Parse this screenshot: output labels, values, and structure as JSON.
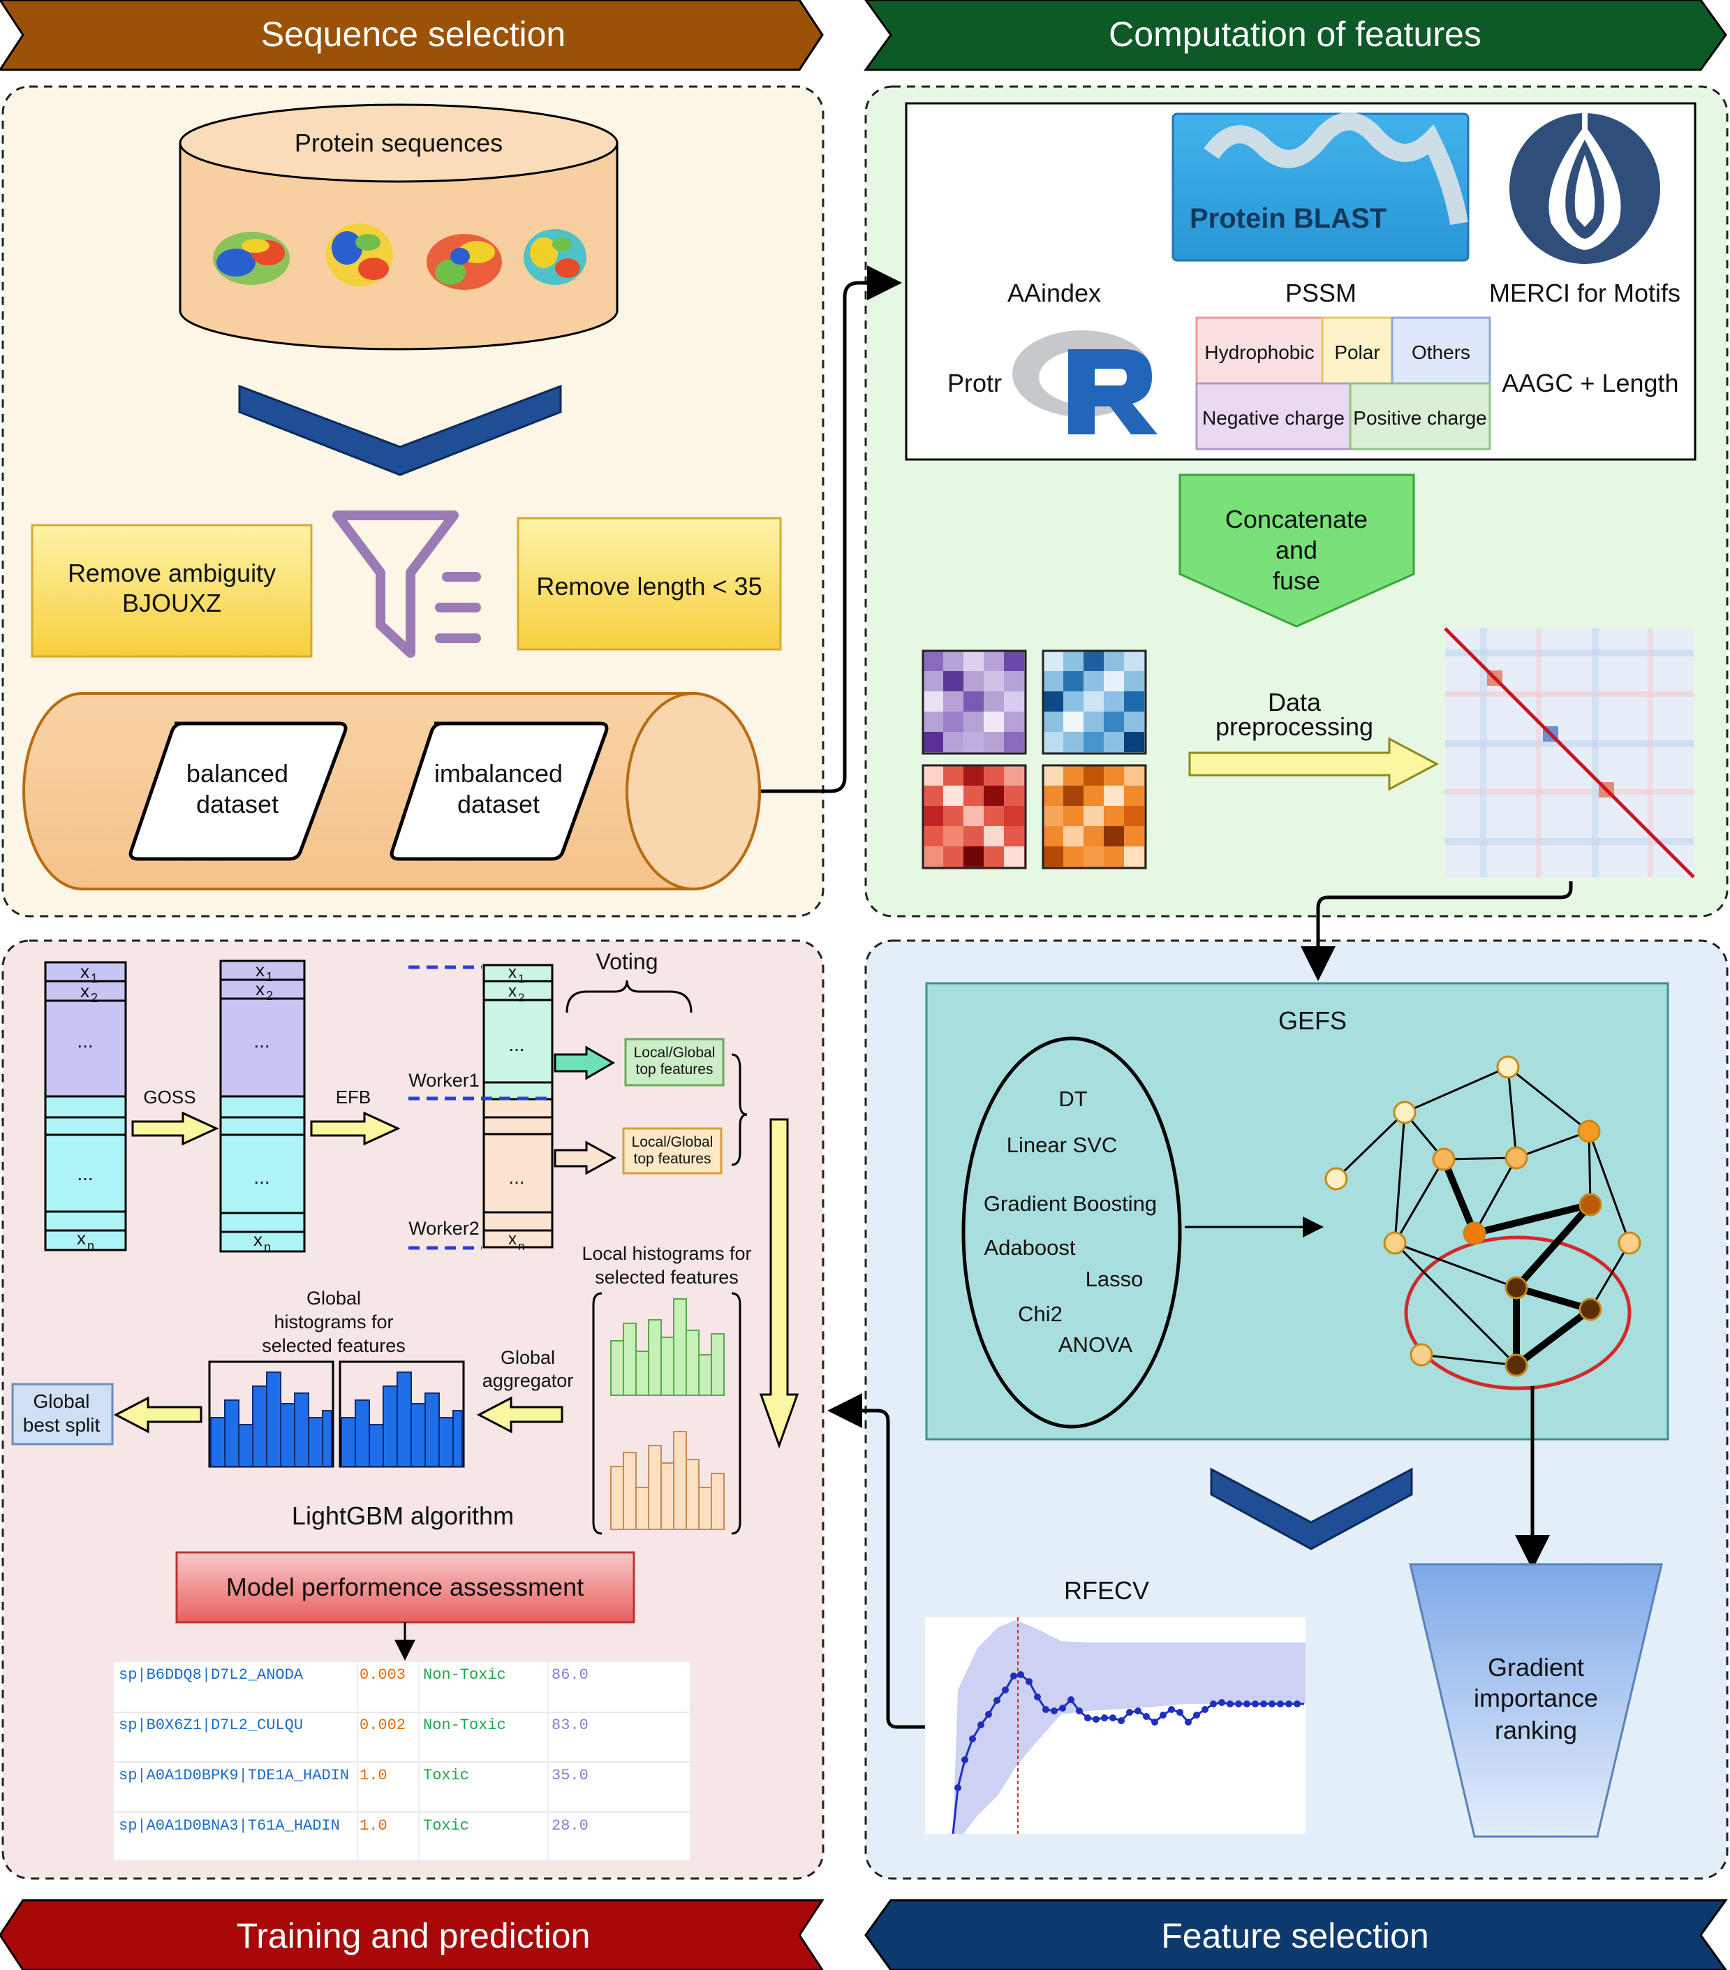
{
  "banners": {
    "top_left": "Sequence selection",
    "top_right": "Computation of features",
    "bottom_left": "Training and prediction",
    "bottom_right": "Feature selection"
  },
  "sequence": {
    "db_label": "Protein sequences",
    "filter1": [
      "Remove ambiguity",
      "BJOUXZ"
    ],
    "filter2": "Remove length < 35",
    "balanced": [
      "balanced",
      "dataset"
    ],
    "imbalanced": [
      "imbalanced",
      "dataset"
    ]
  },
  "features": {
    "blast_label": "Protein BLAST",
    "aaindex": "AAindex",
    "pssm": "PSSM",
    "merci": "MERCI for Motifs",
    "protr": "Protr",
    "aagc": "AAGC + Length",
    "groups": [
      "Hydrophobic",
      "Polar",
      "Others",
      "Negative charge",
      "Positive charge"
    ],
    "concat": [
      "Concatenate",
      "and",
      "fuse"
    ],
    "preprocessing": [
      "Data",
      "preprocessing"
    ]
  },
  "selection": {
    "gefs": "GEFS",
    "methods": [
      "DT",
      "Linear SVC",
      "Gradient Boosting",
      "Adaboost",
      "Lasso",
      "Chi2",
      "ANOVA"
    ],
    "rfecv": "RFECV",
    "gradient": [
      "Gradient",
      "importance",
      "ranking"
    ]
  },
  "training": {
    "goss": "GOSS",
    "efb": "EFB",
    "voting": "Voting",
    "worker1": "Worker1",
    "worker2": "Worker2",
    "local_global": [
      "Local/Global",
      "top features"
    ],
    "local_hist": [
      "Local histograms for",
      "selected features"
    ],
    "global_hist": [
      "Global",
      "histograms for",
      "selected features"
    ],
    "global_agg": [
      "Global",
      "aggregator"
    ],
    "global_best": [
      "Global",
      "best split"
    ],
    "lightgbm": "LightGBM algorithm",
    "assessment": "Model performence assessment",
    "dots": "...",
    "x1": "x",
    "sub1": "1",
    "sub2": "2",
    "subn": "n",
    "results": [
      {
        "id": "sp|B6DDQ8|D7L2_ANODA",
        "score": "0.003",
        "label": "Non-Toxic",
        "value": "86.0"
      },
      {
        "id": "sp|B0X6Z1|D7L2_CULQU",
        "score": "0.002",
        "label": "Non-Toxic",
        "value": "83.0"
      },
      {
        "id": "sp|A0A1D0BPK9|TDE1A_HADIN",
        "score": "1.0",
        "label": "Toxic",
        "value": "35.0"
      },
      {
        "id": "sp|A0A1D0BNA3|T61A_HADIN",
        "score": "1.0",
        "label": "Toxic",
        "value": "28.0"
      }
    ]
  },
  "colors": {
    "banner_tl": "#9c5206",
    "banner_tr": "#0e5a27",
    "banner_bl": "#a80808",
    "banner_br": "#0c3a6e",
    "panel_tl": "#fbf6e6",
    "panel_tr": "#e6f7e4",
    "panel_bl": "#f6e6e6",
    "panel_br": "#e4eef8"
  }
}
